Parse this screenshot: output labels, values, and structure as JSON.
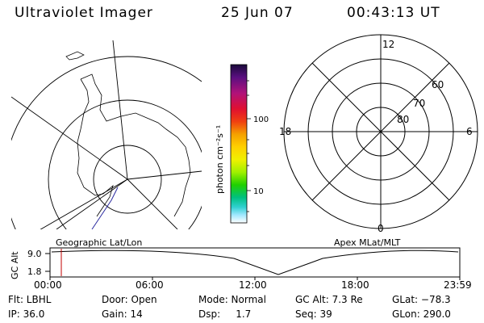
{
  "header": {
    "instrument": "Ultraviolet Imager",
    "date": "25 Jun 07",
    "time": "00:43:13 UT"
  },
  "colorbar": {
    "label": "photon cm⁻²s⁻¹",
    "ticks": [
      "100",
      "10"
    ],
    "scale": "log",
    "colors": [
      "#1a0a3a",
      "#5a0f80",
      "#b0127a",
      "#e01030",
      "#f04010",
      "#f5a000",
      "#ffd000",
      "#f0f000",
      "#a0f000",
      "#20d000",
      "#00c080",
      "#30d0d0",
      "#a0e8ff",
      "#ffffff"
    ]
  },
  "polar_dial": {
    "top": "12",
    "bottom": "0",
    "left": "18",
    "right": "6",
    "lat_labels": [
      "60",
      "70",
      "80"
    ]
  },
  "timeline": {
    "y_axis_label": "GC Alt",
    "y_ticks": [
      "9.0",
      "1.8"
    ],
    "left_caption": "Geographic Lat/Lon",
    "right_caption": "Apex MLat/MLT",
    "x_ticks": [
      "00:00",
      "06:00",
      "12:00",
      "18:00",
      "23:59"
    ],
    "marker_color": "#c00000"
  },
  "footer": {
    "col1": [
      "Flt: LBHL",
      "IP: 36.0"
    ],
    "col2": [
      "Door: Open",
      "Gain: 14"
    ],
    "col3": [
      "Mode: Normal",
      "Dsp:     1.7"
    ],
    "col4": [
      "GC Alt: 7.3 Re",
      "Seq: 39"
    ],
    "col5": [
      "GLat: −78.3",
      "GLon: 290.0"
    ]
  }
}
